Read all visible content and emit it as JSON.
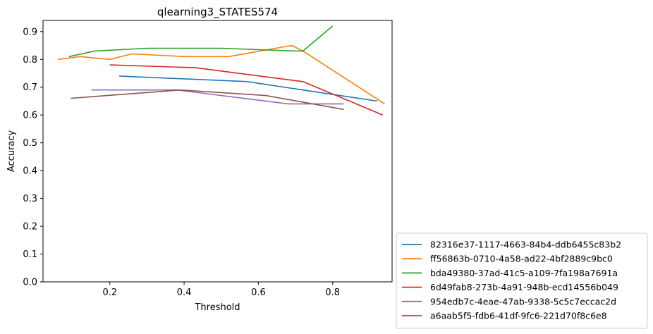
{
  "chart_data": {
    "type": "line",
    "title": "qlearning3_STATES574",
    "xlabel": "Threshold",
    "ylabel": "Accuracy",
    "xlim": [
      0.02,
      0.96
    ],
    "ylim": [
      0.0,
      0.94
    ],
    "xticks": [
      0.2,
      0.4,
      0.6,
      0.8
    ],
    "xtick_labels": [
      "0.2",
      "0.4",
      "0.6",
      "0.8"
    ],
    "yticks": [
      0.0,
      0.1,
      0.2,
      0.3,
      0.4,
      0.5,
      0.6,
      0.7,
      0.8,
      0.9
    ],
    "ytick_labels": [
      "0.0",
      "0.1",
      "0.2",
      "0.3",
      "0.4",
      "0.5",
      "0.6",
      "0.7",
      "0.8",
      "0.9"
    ],
    "grid": false,
    "legend_position": "outside-bottom-right",
    "series": [
      {
        "name": "82316e37-1117-4663-84b4-ddb6455c83b2",
        "color": "#1f77b4",
        "x": [
          0.225,
          0.57,
          0.72,
          0.92
        ],
        "y": [
          0.74,
          0.72,
          0.69,
          0.65
        ]
      },
      {
        "name": "ff56863b-0710-4a58-ad22-4bf2889c9bc0",
        "color": "#ff7f0e",
        "x": [
          0.06,
          0.12,
          0.2,
          0.26,
          0.4,
          0.52,
          0.69,
          0.72,
          0.94
        ],
        "y": [
          0.8,
          0.81,
          0.8,
          0.82,
          0.81,
          0.81,
          0.85,
          0.83,
          0.64
        ]
      },
      {
        "name": "bda49380-37ad-41c5-a109-7fa198a7691a",
        "color": "#2ca02c",
        "x": [
          0.09,
          0.16,
          0.3,
          0.5,
          0.7,
          0.72,
          0.8
        ],
        "y": [
          0.81,
          0.83,
          0.84,
          0.84,
          0.83,
          0.83,
          0.92
        ]
      },
      {
        "name": "6d49fab8-273b-4a91-948b-ecd14556b049",
        "color": "#d62728",
        "x": [
          0.2,
          0.43,
          0.72,
          0.935
        ],
        "y": [
          0.78,
          0.77,
          0.72,
          0.6
        ]
      },
      {
        "name": "954edb7c-4eae-47ab-9338-5c5c7eccac2d",
        "color": "#9467bd",
        "x": [
          0.15,
          0.38,
          0.68,
          0.83
        ],
        "y": [
          0.69,
          0.69,
          0.64,
          0.64
        ]
      },
      {
        "name": "a6aab5f5-fdb6-41df-9fc6-221d70f8c6e8",
        "color": "#8c564b",
        "x": [
          0.095,
          0.39,
          0.62,
          0.83
        ],
        "y": [
          0.66,
          0.69,
          0.67,
          0.62
        ]
      }
    ]
  }
}
